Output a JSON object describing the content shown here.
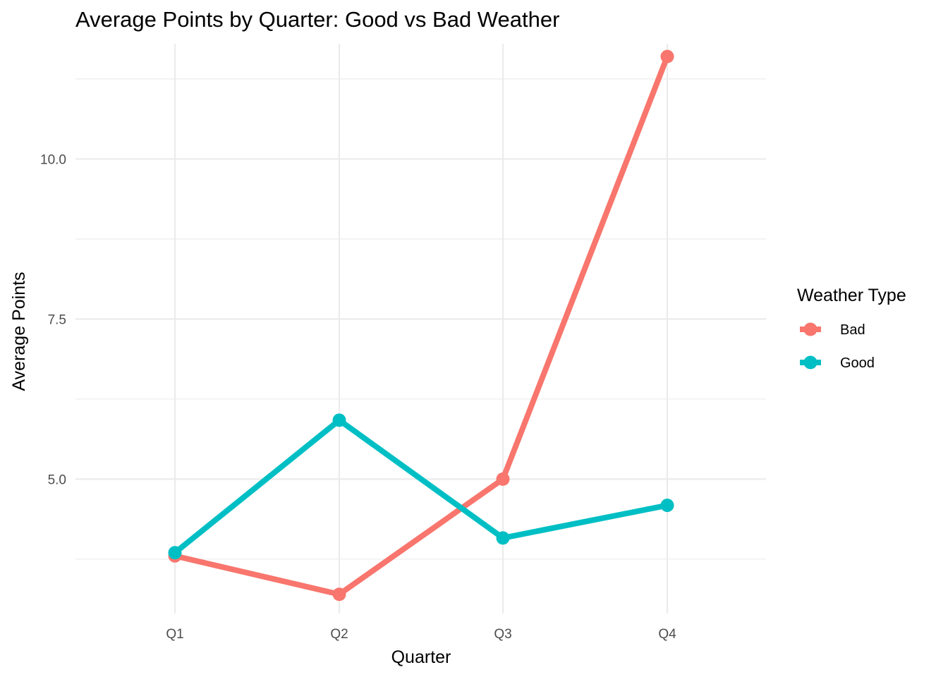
{
  "chart_data": {
    "type": "line",
    "title": "Average Points by Quarter: Good vs Bad Weather",
    "xlabel": "Quarter",
    "ylabel": "Average Points",
    "categories": [
      "Q1",
      "Q2",
      "Q3",
      "Q4"
    ],
    "ylim": [
      2.9,
      11.8
    ],
    "y_major_ticks": [
      5.0,
      7.5,
      10.0
    ],
    "y_tick_labels": [
      "5.0",
      "7.5",
      "10.0"
    ],
    "y_minor_ticks": [
      3.75,
      6.25,
      8.75,
      11.25
    ],
    "grid": true,
    "legend": {
      "title": "Weather Type",
      "position": "right"
    },
    "series": [
      {
        "name": "Bad",
        "color": "#F8766D",
        "values": [
          3.8,
          3.2,
          5.0,
          11.6
        ]
      },
      {
        "name": "Good",
        "color": "#00BFC4",
        "values": [
          3.85,
          5.92,
          4.08,
          4.59
        ]
      }
    ]
  }
}
